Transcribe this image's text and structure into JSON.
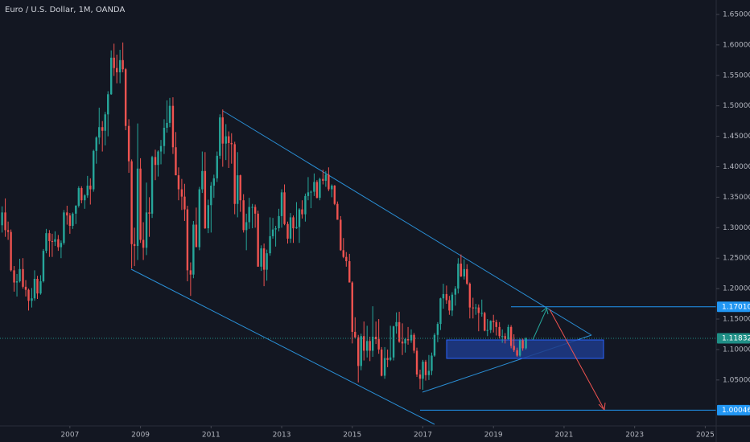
{
  "chart_data": {
    "type": "candlestick",
    "title": "Euro / U.S. Dollar, 1M, OANDA",
    "up_color": "#26a69a",
    "down_color": "#ef5350",
    "grid": false,
    "xlim": [
      2005.02,
      2025.31
    ],
    "ylim": [
      0.9746,
      1.6737
    ],
    "xticks": [
      2007,
      2009,
      2011,
      2013,
      2015,
      2017,
      2019,
      2021,
      2023,
      2025
    ],
    "yticks": [
      {
        "value": 1.05,
        "label": "1.05000"
      },
      {
        "value": 1.1,
        "label": "1.10000"
      },
      {
        "value": 1.15,
        "label": "1.15000"
      },
      {
        "value": 1.2,
        "label": "1.20000"
      },
      {
        "value": 1.25,
        "label": "1.25000"
      },
      {
        "value": 1.3,
        "label": "1.30000"
      },
      {
        "value": 1.35,
        "label": "1.35000"
      },
      {
        "value": 1.4,
        "label": "1.40000"
      },
      {
        "value": 1.45,
        "label": "1.45000"
      },
      {
        "value": 1.5,
        "label": "1.50000"
      },
      {
        "value": 1.55,
        "label": "1.55000"
      },
      {
        "value": 1.6,
        "label": "1.60000"
      },
      {
        "value": 1.65,
        "label": "1.65000"
      }
    ],
    "price_labels": [
      {
        "value": 1.1701,
        "label": "1.17010",
        "color": "#2196f3"
      },
      {
        "value": 1.11832,
        "label": "1.11832",
        "color": "#1f8f86"
      },
      {
        "value": 1.00046,
        "label": "1.00046",
        "color": "#2196f3"
      }
    ],
    "x": [
      2005.08,
      2005.17,
      2005.25,
      2005.33,
      2005.42,
      2005.5,
      2005.58,
      2005.67,
      2005.75,
      2005.83,
      2005.92,
      2006,
      2006.08,
      2006.17,
      2006.25,
      2006.33,
      2006.42,
      2006.5,
      2006.58,
      2006.67,
      2006.75,
      2006.83,
      2006.92,
      2007,
      2007.08,
      2007.17,
      2007.25,
      2007.33,
      2007.42,
      2007.5,
      2007.58,
      2007.67,
      2007.75,
      2007.83,
      2007.92,
      2008,
      2008.08,
      2008.17,
      2008.25,
      2008.33,
      2008.42,
      2008.5,
      2008.58,
      2008.67,
      2008.75,
      2008.83,
      2008.92,
      2009,
      2009.08,
      2009.17,
      2009.25,
      2009.33,
      2009.42,
      2009.5,
      2009.58,
      2009.67,
      2009.75,
      2009.83,
      2009.92,
      2010,
      2010.08,
      2010.17,
      2010.25,
      2010.33,
      2010.42,
      2010.5,
      2010.58,
      2010.67,
      2010.75,
      2010.83,
      2010.92,
      2011,
      2011.08,
      2011.17,
      2011.25,
      2011.33,
      2011.42,
      2011.5,
      2011.58,
      2011.67,
      2011.75,
      2011.83,
      2011.92,
      2012,
      2012.08,
      2012.17,
      2012.25,
      2012.33,
      2012.42,
      2012.5,
      2012.58,
      2012.67,
      2012.75,
      2012.83,
      2012.92,
      2013,
      2013.08,
      2013.17,
      2013.25,
      2013.33,
      2013.42,
      2013.5,
      2013.58,
      2013.67,
      2013.75,
      2013.83,
      2013.92,
      2014,
      2014.08,
      2014.17,
      2014.25,
      2014.33,
      2014.42,
      2014.5,
      2014.58,
      2014.67,
      2014.75,
      2014.83,
      2014.92,
      2015,
      2015.08,
      2015.17,
      2015.25,
      2015.33,
      2015.42,
      2015.5,
      2015.58,
      2015.67,
      2015.75,
      2015.83,
      2015.92,
      2016,
      2016.08,
      2016.17,
      2016.25,
      2016.33,
      2016.42,
      2016.5,
      2016.58,
      2016.67,
      2016.75,
      2016.83,
      2016.92,
      2017,
      2017.08,
      2017.17,
      2017.25,
      2017.33,
      2017.42,
      2017.5,
      2017.58,
      2017.67,
      2017.75,
      2017.83,
      2017.92,
      2018,
      2018.08,
      2018.17,
      2018.25,
      2018.33,
      2018.42,
      2018.5,
      2018.58,
      2018.67,
      2018.75,
      2018.83,
      2018.92,
      2019,
      2019.08,
      2019.17,
      2019.25,
      2019.33,
      2019.42,
      2019.5,
      2019.58,
      2019.67,
      2019.75,
      2019.83,
      2019.92
    ],
    "ohlc": [
      [
        1.304,
        1.335,
        1.292,
        1.325
      ],
      [
        1.325,
        1.348,
        1.285,
        1.296
      ],
      [
        1.296,
        1.31,
        1.28,
        1.293
      ],
      [
        1.293,
        1.297,
        1.228,
        1.23
      ],
      [
        1.23,
        1.237,
        1.195,
        1.21
      ],
      [
        1.21,
        1.224,
        1.187,
        1.212
      ],
      [
        1.212,
        1.249,
        1.21,
        1.232
      ],
      [
        1.232,
        1.25,
        1.2,
        1.203
      ],
      [
        1.203,
        1.214,
        1.187,
        1.198
      ],
      [
        1.198,
        1.2,
        1.164,
        1.18
      ],
      [
        1.18,
        1.201,
        1.169,
        1.184
      ],
      [
        1.184,
        1.23,
        1.18,
        1.216
      ],
      [
        1.216,
        1.221,
        1.183,
        1.192
      ],
      [
        1.192,
        1.222,
        1.19,
        1.212
      ],
      [
        1.212,
        1.265,
        1.21,
        1.262
      ],
      [
        1.262,
        1.298,
        1.258,
        1.291
      ],
      [
        1.291,
        1.296,
        1.252,
        1.278
      ],
      [
        1.278,
        1.29,
        1.252,
        1.277
      ],
      [
        1.277,
        1.294,
        1.27,
        1.281
      ],
      [
        1.281,
        1.288,
        1.262,
        1.268
      ],
      [
        1.268,
        1.279,
        1.25,
        1.275
      ],
      [
        1.275,
        1.329,
        1.272,
        1.325
      ],
      [
        1.325,
        1.336,
        1.305,
        1.32
      ],
      [
        1.32,
        1.324,
        1.29,
        1.303
      ],
      [
        1.303,
        1.325,
        1.298,
        1.323
      ],
      [
        1.323,
        1.337,
        1.306,
        1.336
      ],
      [
        1.336,
        1.368,
        1.333,
        1.365
      ],
      [
        1.365,
        1.368,
        1.34,
        1.345
      ],
      [
        1.345,
        1.355,
        1.331,
        1.353
      ],
      [
        1.353,
        1.385,
        1.349,
        1.369
      ],
      [
        1.369,
        1.381,
        1.338,
        1.363
      ],
      [
        1.363,
        1.428,
        1.359,
        1.426
      ],
      [
        1.426,
        1.45,
        1.405,
        1.448
      ],
      [
        1.448,
        1.497,
        1.437,
        1.465
      ],
      [
        1.465,
        1.475,
        1.425,
        1.459
      ],
      [
        1.459,
        1.49,
        1.435,
        1.486
      ],
      [
        1.486,
        1.524,
        1.45,
        1.519
      ],
      [
        1.519,
        1.591,
        1.518,
        1.579
      ],
      [
        1.579,
        1.602,
        1.549,
        1.562
      ],
      [
        1.562,
        1.584,
        1.537,
        1.555
      ],
      [
        1.555,
        1.592,
        1.537,
        1.575
      ],
      [
        1.575,
        1.604,
        1.555,
        1.56
      ],
      [
        1.56,
        1.562,
        1.46,
        1.467
      ],
      [
        1.467,
        1.478,
        1.39,
        1.409
      ],
      [
        1.409,
        1.412,
        1.233,
        1.273
      ],
      [
        1.273,
        1.3,
        1.237,
        1.27
      ],
      [
        1.27,
        1.471,
        1.247,
        1.397
      ],
      [
        1.397,
        1.414,
        1.275,
        1.28
      ],
      [
        1.28,
        1.309,
        1.247,
        1.267
      ],
      [
        1.267,
        1.374,
        1.255,
        1.325
      ],
      [
        1.325,
        1.35,
        1.285,
        1.323
      ],
      [
        1.323,
        1.418,
        1.316,
        1.416
      ],
      [
        1.416,
        1.428,
        1.378,
        1.403
      ],
      [
        1.403,
        1.427,
        1.384,
        1.425
      ],
      [
        1.425,
        1.444,
        1.404,
        1.434
      ],
      [
        1.434,
        1.478,
        1.421,
        1.464
      ],
      [
        1.464,
        1.509,
        1.456,
        1.472
      ],
      [
        1.472,
        1.513,
        1.465,
        1.5
      ],
      [
        1.5,
        1.514,
        1.421,
        1.432
      ],
      [
        1.432,
        1.457,
        1.386,
        1.386
      ],
      [
        1.386,
        1.399,
        1.345,
        1.363
      ],
      [
        1.363,
        1.38,
        1.329,
        1.351
      ],
      [
        1.351,
        1.372,
        1.311,
        1.33
      ],
      [
        1.33,
        1.336,
        1.212,
        1.23
      ],
      [
        1.23,
        1.243,
        1.188,
        1.223
      ],
      [
        1.223,
        1.311,
        1.217,
        1.305
      ],
      [
        1.305,
        1.333,
        1.27,
        1.268
      ],
      [
        1.268,
        1.367,
        1.263,
        1.363
      ],
      [
        1.363,
        1.425,
        1.357,
        1.393
      ],
      [
        1.393,
        1.424,
        1.298,
        1.299
      ],
      [
        1.299,
        1.346,
        1.291,
        1.337
      ],
      [
        1.337,
        1.375,
        1.292,
        1.369
      ],
      [
        1.369,
        1.387,
        1.349,
        1.381
      ],
      [
        1.381,
        1.425,
        1.375,
        1.418
      ],
      [
        1.418,
        1.486,
        1.413,
        1.481
      ],
      [
        1.481,
        1.494,
        1.4,
        1.438
      ],
      [
        1.438,
        1.47,
        1.411,
        1.45
      ],
      [
        1.45,
        1.458,
        1.398,
        1.439
      ],
      [
        1.439,
        1.455,
        1.405,
        1.437
      ],
      [
        1.437,
        1.441,
        1.322,
        1.339
      ],
      [
        1.339,
        1.424,
        1.317,
        1.386
      ],
      [
        1.386,
        1.387,
        1.326,
        1.345
      ],
      [
        1.345,
        1.355,
        1.292,
        1.296
      ],
      [
        1.296,
        1.323,
        1.263,
        1.309
      ],
      [
        1.309,
        1.349,
        1.298,
        1.334
      ],
      [
        1.334,
        1.339,
        1.299,
        1.334
      ],
      [
        1.334,
        1.338,
        1.3,
        1.323
      ],
      [
        1.323,
        1.328,
        1.236,
        1.236
      ],
      [
        1.236,
        1.271,
        1.229,
        1.266
      ],
      [
        1.266,
        1.274,
        1.204,
        1.231
      ],
      [
        1.231,
        1.264,
        1.213,
        1.258
      ],
      [
        1.258,
        1.317,
        1.254,
        1.286
      ],
      [
        1.286,
        1.316,
        1.282,
        1.297
      ],
      [
        1.297,
        1.303,
        1.269,
        1.299
      ],
      [
        1.299,
        1.331,
        1.294,
        1.319
      ],
      [
        1.319,
        1.363,
        1.3,
        1.358
      ],
      [
        1.358,
        1.371,
        1.304,
        1.306
      ],
      [
        1.306,
        1.31,
        1.274,
        1.282
      ],
      [
        1.282,
        1.324,
        1.275,
        1.317
      ],
      [
        1.317,
        1.32,
        1.275,
        1.299
      ],
      [
        1.299,
        1.342,
        1.298,
        1.301
      ],
      [
        1.301,
        1.332,
        1.275,
        1.33
      ],
      [
        1.33,
        1.345,
        1.315,
        1.322
      ],
      [
        1.322,
        1.356,
        1.31,
        1.352
      ],
      [
        1.352,
        1.383,
        1.345,
        1.358
      ],
      [
        1.358,
        1.361,
        1.332,
        1.359
      ],
      [
        1.359,
        1.389,
        1.352,
        1.375
      ],
      [
        1.375,
        1.378,
        1.348,
        1.349
      ],
      [
        1.349,
        1.382,
        1.345,
        1.38
      ],
      [
        1.38,
        1.395,
        1.371,
        1.377
      ],
      [
        1.377,
        1.393,
        1.367,
        1.387
      ],
      [
        1.387,
        1.399,
        1.36,
        1.363
      ],
      [
        1.363,
        1.371,
        1.35,
        1.369
      ],
      [
        1.369,
        1.37,
        1.337,
        1.339
      ],
      [
        1.339,
        1.343,
        1.313,
        1.313
      ],
      [
        1.313,
        1.319,
        1.262,
        1.263
      ],
      [
        1.263,
        1.283,
        1.25,
        1.252
      ],
      [
        1.252,
        1.26,
        1.236,
        1.245
      ],
      [
        1.245,
        1.257,
        1.21,
        1.21
      ],
      [
        1.21,
        1.212,
        1.11,
        1.129
      ],
      [
        1.129,
        1.153,
        1.118,
        1.12
      ],
      [
        1.12,
        1.124,
        1.046,
        1.073
      ],
      [
        1.073,
        1.126,
        1.066,
        1.122
      ],
      [
        1.122,
        1.146,
        1.082,
        1.098
      ],
      [
        1.098,
        1.139,
        1.087,
        1.114
      ],
      [
        1.114,
        1.121,
        1.081,
        1.098
      ],
      [
        1.098,
        1.171,
        1.088,
        1.121
      ],
      [
        1.121,
        1.146,
        1.109,
        1.117
      ],
      [
        1.117,
        1.15,
        1.093,
        1.1
      ],
      [
        1.1,
        1.104,
        1.056,
        1.057
      ],
      [
        1.057,
        1.104,
        1.052,
        1.086
      ],
      [
        1.086,
        1.1,
        1.071,
        1.083
      ],
      [
        1.083,
        1.139,
        1.081,
        1.087
      ],
      [
        1.087,
        1.139,
        1.082,
        1.138
      ],
      [
        1.138,
        1.161,
        1.126,
        1.145
      ],
      [
        1.145,
        1.162,
        1.111,
        1.113
      ],
      [
        1.113,
        1.143,
        1.091,
        1.11
      ],
      [
        1.11,
        1.119,
        1.095,
        1.117
      ],
      [
        1.117,
        1.137,
        1.108,
        1.115
      ],
      [
        1.115,
        1.133,
        1.111,
        1.124
      ],
      [
        1.124,
        1.127,
        1.094,
        1.098
      ],
      [
        1.098,
        1.103,
        1.055,
        1.059
      ],
      [
        1.059,
        1.067,
        1.035,
        1.052
      ],
      [
        1.052,
        1.083,
        1.034,
        1.08
      ],
      [
        1.08,
        1.083,
        1.049,
        1.058
      ],
      [
        1.058,
        1.091,
        1.05,
        1.065
      ],
      [
        1.065,
        1.095,
        1.058,
        1.09
      ],
      [
        1.09,
        1.127,
        1.088,
        1.124
      ],
      [
        1.124,
        1.145,
        1.112,
        1.142
      ],
      [
        1.142,
        1.185,
        1.132,
        1.184
      ],
      [
        1.184,
        1.208,
        1.167,
        1.191
      ],
      [
        1.191,
        1.205,
        1.175,
        1.181
      ],
      [
        1.181,
        1.188,
        1.157,
        1.164
      ],
      [
        1.164,
        1.194,
        1.155,
        1.19
      ],
      [
        1.19,
        1.204,
        1.172,
        1.2
      ],
      [
        1.2,
        1.25,
        1.192,
        1.241
      ],
      [
        1.241,
        1.256,
        1.219,
        1.22
      ],
      [
        1.22,
        1.248,
        1.215,
        1.232
      ],
      [
        1.232,
        1.24,
        1.206,
        1.208
      ],
      [
        1.208,
        1.21,
        1.151,
        1.169
      ],
      [
        1.169,
        1.185,
        1.151,
        1.168
      ],
      [
        1.168,
        1.175,
        1.157,
        1.169
      ],
      [
        1.169,
        1.174,
        1.13,
        1.16
      ],
      [
        1.16,
        1.182,
        1.154,
        1.16
      ],
      [
        1.16,
        1.162,
        1.13,
        1.131
      ],
      [
        1.131,
        1.15,
        1.122,
        1.132
      ],
      [
        1.132,
        1.148,
        1.127,
        1.147
      ],
      [
        1.147,
        1.157,
        1.128,
        1.145
      ],
      [
        1.145,
        1.149,
        1.123,
        1.137
      ],
      [
        1.137,
        1.145,
        1.118,
        1.122
      ],
      [
        1.122,
        1.133,
        1.111,
        1.122
      ],
      [
        1.122,
        1.127,
        1.11,
        1.117
      ],
      [
        1.117,
        1.141,
        1.116,
        1.137
      ],
      [
        1.137,
        1.14,
        1.102,
        1.106
      ],
      [
        1.106,
        1.125,
        1.096,
        1.099
      ],
      [
        1.099,
        1.103,
        1.088,
        1.09
      ],
      [
        1.09,
        1.118,
        1.088,
        1.115
      ],
      [
        1.115,
        1.118,
        1.098,
        1.102
      ],
      [
        1.102,
        1.12,
        1.1,
        1.11832
      ]
    ]
  }
}
